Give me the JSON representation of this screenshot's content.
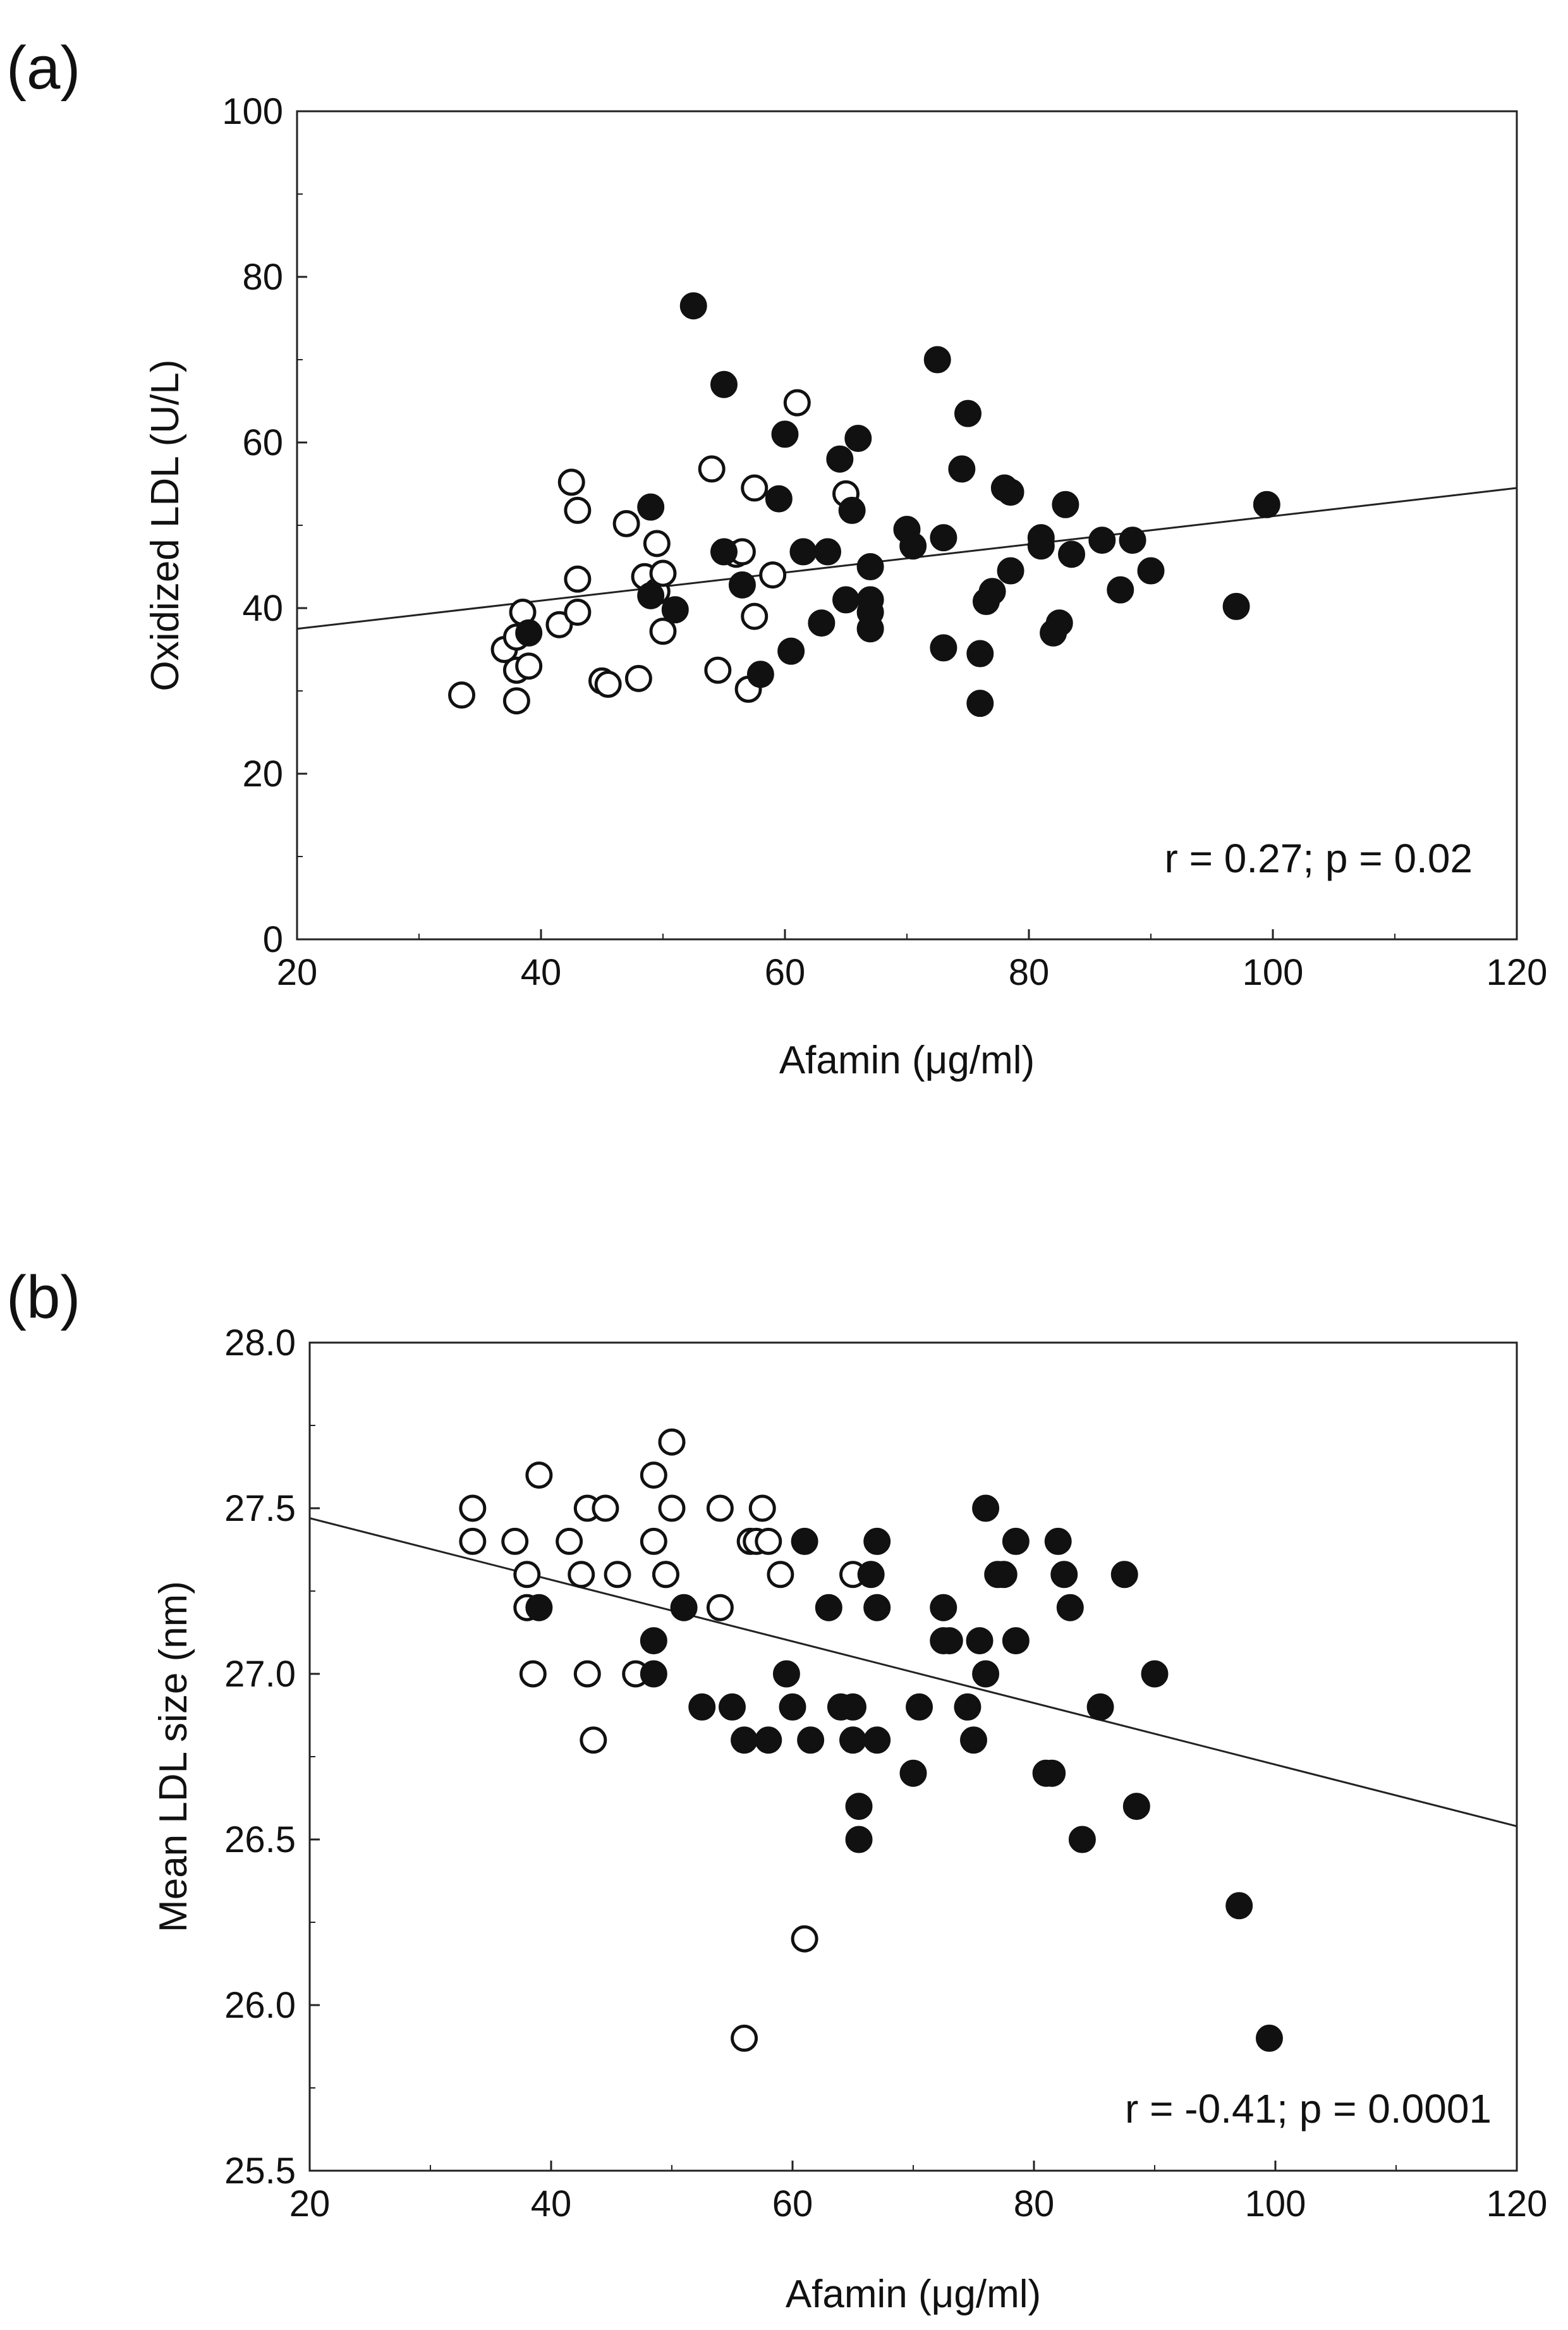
{
  "chart_data": [
    {
      "panel_label": "(a)",
      "type": "scatter",
      "xlabel": "Afamin (μg/ml)",
      "ylabel": "Oxidized LDL (U/L)",
      "xlim": [
        20,
        120
      ],
      "ylim": [
        0,
        100
      ],
      "xticks": [
        "20",
        "40",
        "60",
        "80",
        "100",
        "120"
      ],
      "yticks": [
        "0",
        "20",
        "40",
        "60",
        "80",
        "100"
      ],
      "annotation": "r = 0.27; p = 0.02",
      "regression": {
        "x": [
          20,
          120
        ],
        "y": [
          37.5,
          54.5
        ]
      },
      "series": [
        {
          "marker": "open-circle",
          "points": [
            [
              33.5,
              29.5
            ],
            [
              37,
              35
            ],
            [
              38,
              36.5
            ],
            [
              38,
              32.5
            ],
            [
              38,
              28.8
            ],
            [
              38.5,
              39.5
            ],
            [
              39,
              33
            ],
            [
              41.5,
              38
            ],
            [
              42.5,
              55.2
            ],
            [
              43,
              51.8
            ],
            [
              43,
              43.5
            ],
            [
              43,
              39.5
            ],
            [
              45,
              31.2
            ],
            [
              45.5,
              30.8
            ],
            [
              47,
              50.2
            ],
            [
              48,
              31.5
            ],
            [
              48.5,
              43.8
            ],
            [
              49.5,
              47.8
            ],
            [
              49.5,
              42
            ],
            [
              50,
              44.2
            ],
            [
              50,
              37.2
            ],
            [
              54,
              56.8
            ],
            [
              54.5,
              32.5
            ],
            [
              56,
              46.5
            ],
            [
              56.5,
              46.8
            ],
            [
              57,
              30.2
            ],
            [
              57.5,
              39
            ],
            [
              57.5,
              54.5
            ],
            [
              59,
              44
            ],
            [
              61,
              64.8
            ],
            [
              65,
              53.8
            ]
          ]
        },
        {
          "marker": "filled-circle",
          "points": [
            [
              39,
              37
            ],
            [
              49,
              52.2
            ],
            [
              49,
              41.5
            ],
            [
              51,
              39.8
            ],
            [
              52.5,
              76.5
            ],
            [
              55,
              67
            ],
            [
              55,
              46.8
            ],
            [
              56.5,
              42.8
            ],
            [
              58,
              32
            ],
            [
              59.5,
              53.2
            ],
            [
              60,
              61
            ],
            [
              60.5,
              34.8
            ],
            [
              61.5,
              46.8
            ],
            [
              63,
              38.2
            ],
            [
              63.5,
              46.8
            ],
            [
              64.5,
              58
            ],
            [
              65,
              41
            ],
            [
              65.5,
              51.8
            ],
            [
              66,
              60.5
            ],
            [
              67,
              45
            ],
            [
              67,
              41
            ],
            [
              67,
              39.5
            ],
            [
              67,
              37.5
            ],
            [
              70,
              49.5
            ],
            [
              70.5,
              47.5
            ],
            [
              72.5,
              70
            ],
            [
              73,
              48.5
            ],
            [
              73,
              35.2
            ],
            [
              74.5,
              56.8
            ],
            [
              75,
              63.5
            ],
            [
              76,
              34.5
            ],
            [
              76,
              28.5
            ],
            [
              76.5,
              40.8
            ],
            [
              77,
              42
            ],
            [
              78,
              54.5
            ],
            [
              78.5,
              54
            ],
            [
              78.5,
              44.5
            ],
            [
              81,
              47.5
            ],
            [
              81,
              48.5
            ],
            [
              82,
              37
            ],
            [
              82.5,
              38.2
            ],
            [
              83,
              52.5
            ],
            [
              83.5,
              46.5
            ],
            [
              86,
              48.2
            ],
            [
              87.5,
              42.2
            ],
            [
              88.5,
              48.2
            ],
            [
              90,
              44.5
            ],
            [
              97,
              40.2
            ],
            [
              99.5,
              52.5
            ]
          ]
        }
      ]
    },
    {
      "panel_label": "(b)",
      "type": "scatter",
      "xlabel": "Afamin (μg/ml)",
      "ylabel": "Mean LDL size (nm)",
      "xlim": [
        20,
        120
      ],
      "ylim": [
        25.5,
        28.0
      ],
      "xticks": [
        "20",
        "40",
        "60",
        "80",
        "100",
        "120"
      ],
      "yticks": [
        "25.5",
        "26.0",
        "26.5",
        "27.0",
        "27.5",
        "28.0"
      ],
      "annotation": "r = -0.41; p = 0.0001",
      "regression": {
        "x": [
          20,
          120
        ],
        "y": [
          27.47,
          26.54
        ]
      },
      "series": [
        {
          "marker": "open-circle",
          "points": [
            [
              33.5,
              27.5
            ],
            [
              33.5,
              27.4
            ],
            [
              37,
              27.4
            ],
            [
              38,
              27.3
            ],
            [
              38,
              27.2
            ],
            [
              38.5,
              27
            ],
            [
              39,
              27.6
            ],
            [
              41.5,
              27.4
            ],
            [
              42.5,
              27.3
            ],
            [
              43,
              27.5
            ],
            [
              43,
              27
            ],
            [
              43.5,
              26.8
            ],
            [
              44.5,
              27.5
            ],
            [
              45.5,
              27.3
            ],
            [
              47,
              27
            ],
            [
              48.5,
              27.6
            ],
            [
              48.5,
              27.4
            ],
            [
              49.5,
              27.3
            ],
            [
              49.5,
              27.3
            ],
            [
              50,
              27.7
            ],
            [
              50,
              27.5
            ],
            [
              54,
              27.5
            ],
            [
              54,
              27.2
            ],
            [
              56,
              25.9
            ],
            [
              56.5,
              27.4
            ],
            [
              57,
              27.4
            ],
            [
              57.5,
              27.5
            ],
            [
              58,
              27.4
            ],
            [
              59,
              27.3
            ],
            [
              61,
              26.2
            ],
            [
              65,
              27.3
            ]
          ]
        },
        {
          "marker": "filled-circle",
          "points": [
            [
              39,
              27.2
            ],
            [
              48.5,
              27.1
            ],
            [
              48.5,
              27
            ],
            [
              51,
              27.2
            ],
            [
              52.5,
              26.9
            ],
            [
              55,
              26.9
            ],
            [
              56,
              26.8
            ],
            [
              58,
              26.8
            ],
            [
              59.5,
              27
            ],
            [
              60,
              26.9
            ],
            [
              61,
              27.4
            ],
            [
              61.5,
              26.8
            ],
            [
              63,
              27.2
            ],
            [
              64,
              26.9
            ],
            [
              65,
              26.9
            ],
            [
              65,
              26.8
            ],
            [
              65.5,
              26.5
            ],
            [
              65.5,
              26.6
            ],
            [
              66.5,
              27.3
            ],
            [
              67,
              27.4
            ],
            [
              67,
              27.2
            ],
            [
              67,
              26.8
            ],
            [
              70,
              26.7
            ],
            [
              70.5,
              26.9
            ],
            [
              72.5,
              27.1
            ],
            [
              72.5,
              27.2
            ],
            [
              73,
              27.1
            ],
            [
              74.5,
              26.9
            ],
            [
              75,
              26.8
            ],
            [
              75.5,
              27.1
            ],
            [
              76,
              27.5
            ],
            [
              76,
              27
            ],
            [
              77,
              27.3
            ],
            [
              77.5,
              27.3
            ],
            [
              78.5,
              27.4
            ],
            [
              78.5,
              27.1
            ],
            [
              81,
              26.7
            ],
            [
              81.5,
              26.7
            ],
            [
              82,
              27.4
            ],
            [
              82.5,
              27.3
            ],
            [
              83,
              27.2
            ],
            [
              84,
              26.5
            ],
            [
              85.5,
              26.9
            ],
            [
              87.5,
              27.3
            ],
            [
              88.5,
              26.6
            ],
            [
              90,
              27
            ],
            [
              97,
              26.3
            ],
            [
              99.5,
              25.9
            ]
          ]
        }
      ]
    }
  ]
}
